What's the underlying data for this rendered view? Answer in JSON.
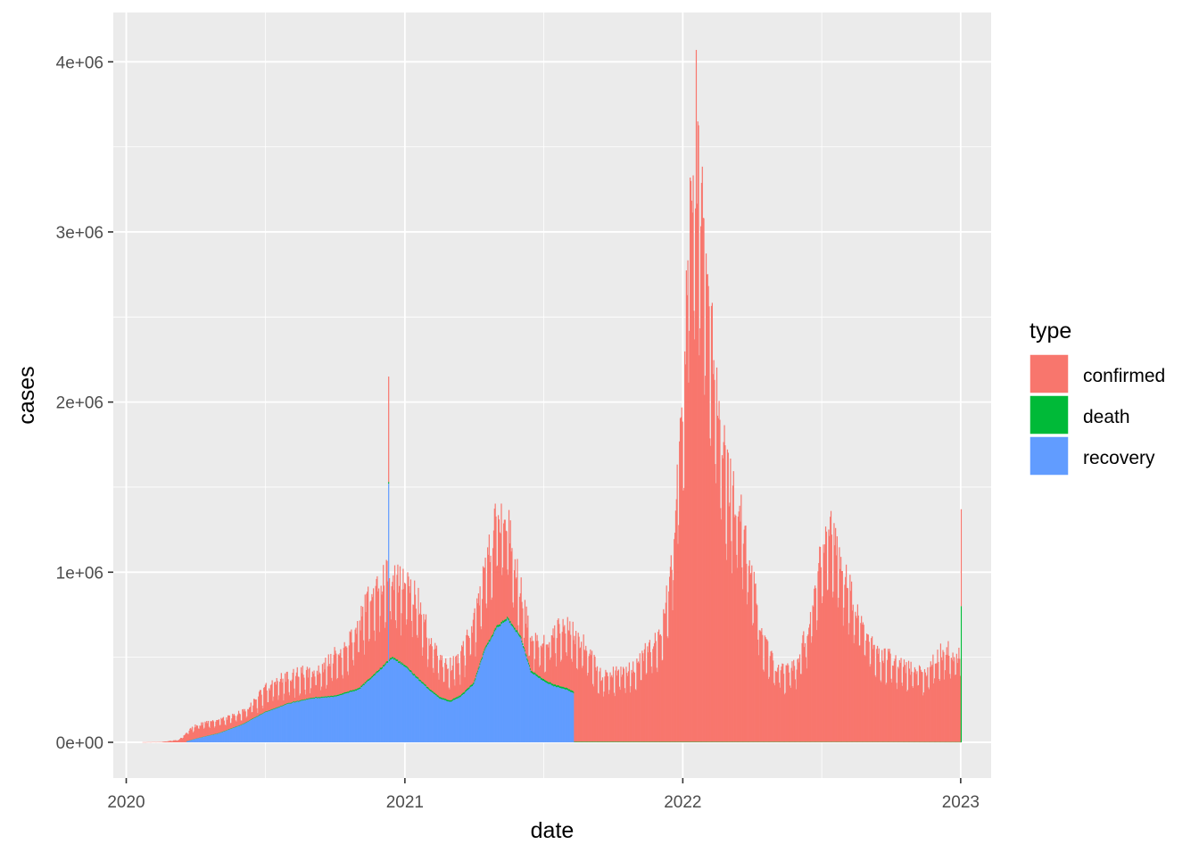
{
  "chart_data": {
    "type": "bar",
    "stacked": true,
    "xlabel": "date",
    "ylabel": "cases",
    "xlim": [
      "2019-12-15",
      "2023-02-10"
    ],
    "ylim": [
      -210000,
      4290000
    ],
    "x_ticks": [
      "2020",
      "2021",
      "2022",
      "2023"
    ],
    "x_tick_dates": [
      "2020-01-01",
      "2021-01-01",
      "2022-01-01",
      "2023-01-01"
    ],
    "y_ticks": [
      "0e+00",
      "1e+06",
      "2e+06",
      "3e+06",
      "4e+06"
    ],
    "y_tick_values": [
      0,
      1000000,
      2000000,
      3000000,
      4000000
    ],
    "grid": true,
    "legend_title": "type",
    "legend_position": "right",
    "series": [
      {
        "name": "confirmed",
        "color": "#F8766D",
        "dates": [
          "2020-01-22",
          "2020-02-15",
          "2020-03-10",
          "2020-03-20",
          "2020-04-01",
          "2020-04-15",
          "2020-05-01",
          "2020-05-15",
          "2020-06-01",
          "2020-06-15",
          "2020-07-01",
          "2020-07-15",
          "2020-08-01",
          "2020-08-15",
          "2020-09-01",
          "2020-09-15",
          "2020-10-01",
          "2020-10-15",
          "2020-11-01",
          "2020-11-15",
          "2020-12-01",
          "2020-12-15",
          "2021-01-01",
          "2021-01-15",
          "2021-02-01",
          "2021-02-15",
          "2021-03-01",
          "2021-03-15",
          "2021-04-01",
          "2021-04-15",
          "2021-05-01",
          "2021-05-15",
          "2021-06-01",
          "2021-06-15",
          "2021-07-01",
          "2021-07-15",
          "2021-08-01",
          "2021-08-15",
          "2021-09-01",
          "2021-09-15",
          "2021-10-01",
          "2021-10-15",
          "2021-11-01",
          "2021-11-15",
          "2021-12-01",
          "2021-12-15",
          "2022-01-01",
          "2022-01-10",
          "2022-01-20",
          "2022-02-01",
          "2022-02-15",
          "2022-03-01",
          "2022-03-15",
          "2022-04-01",
          "2022-04-15",
          "2022-05-01",
          "2022-05-15",
          "2022-06-01",
          "2022-06-15",
          "2022-07-01",
          "2022-07-15",
          "2022-08-01",
          "2022-08-15",
          "2022-09-01",
          "2022-09-15",
          "2022-10-01",
          "2022-10-15",
          "2022-11-01",
          "2022-11-15",
          "2022-12-01",
          "2022-12-15",
          "2022-12-31"
        ],
        "values": [
          500,
          2000,
          15000,
          60000,
          100000,
          115000,
          130000,
          150000,
          180000,
          230000,
          320000,
          360000,
          390000,
          410000,
          420000,
          450000,
          520000,
          550000,
          700000,
          880000,
          960000,
          1000000,
          950000,
          870000,
          640000,
          500000,
          460000,
          520000,
          700000,
          1000000,
          1350000,
          1300000,
          900000,
          640000,
          570000,
          660000,
          700000,
          620000,
          530000,
          400000,
          420000,
          410000,
          460000,
          560000,
          630000,
          1000000,
          2000000,
          3200000,
          3500000,
          2700000,
          2000000,
          1550000,
          1400000,
          1000000,
          620000,
          460000,
          430000,
          480000,
          720000,
          1100000,
          1250000,
          1000000,
          800000,
          620000,
          520000,
          500000,
          460000,
          430000,
          420000,
          520000,
          550000,
          500000
        ]
      },
      {
        "name": "death",
        "color": "#00BA38",
        "dates": [
          "2020-03-20",
          "2020-06-01",
          "2020-09-01",
          "2020-12-01",
          "2021-03-01",
          "2021-05-01",
          "2021-08-10",
          "2021-08-11",
          "2022-03-10",
          "2022-12-31",
          "2023-01-01"
        ],
        "values": [
          1000,
          3000,
          5000,
          10000,
          9000,
          12000,
          10000,
          3000,
          2000,
          1000,
          800000
        ]
      },
      {
        "name": "recovery",
        "color": "#619CFF",
        "dates": [
          "2020-03-20",
          "2020-04-01",
          "2020-05-01",
          "2020-06-01",
          "2020-07-01",
          "2020-08-01",
          "2020-09-01",
          "2020-10-01",
          "2020-11-01",
          "2020-12-01",
          "2020-12-15",
          "2021-01-01",
          "2021-01-15",
          "2021-02-01",
          "2021-02-15",
          "2021-03-01",
          "2021-03-15",
          "2021-04-01",
          "2021-04-15",
          "2021-05-01",
          "2021-05-15",
          "2021-06-01",
          "2021-06-15",
          "2021-07-01",
          "2021-07-15",
          "2021-08-01",
          "2021-08-10"
        ],
        "values": [
          5000,
          20000,
          50000,
          100000,
          170000,
          220000,
          250000,
          260000,
          300000,
          420000,
          480000,
          430000,
          370000,
          300000,
          250000,
          230000,
          260000,
          330000,
          520000,
          650000,
          700000,
          600000,
          400000,
          350000,
          320000,
          300000,
          280000
        ]
      }
    ],
    "annotations": [
      {
        "series": "confirmed",
        "date": "2020-12-10",
        "value": 2150000
      },
      {
        "series": "recovery",
        "date": "2020-12-10",
        "value": 1520000
      },
      {
        "series": "confirmed",
        "date": "2022-01-18",
        "value": 4070000
      },
      {
        "series": "confirmed",
        "date": "2023-01-01",
        "value": 1370000
      }
    ]
  }
}
